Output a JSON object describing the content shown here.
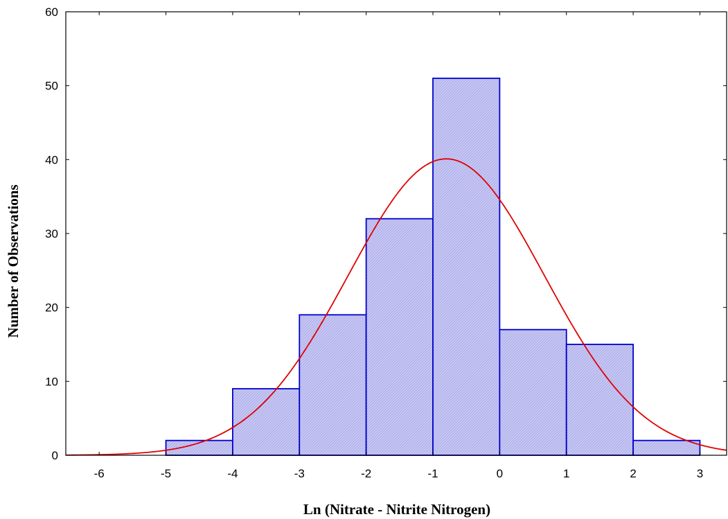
{
  "chart_data": {
    "type": "bar",
    "subtype": "histogram",
    "title": "",
    "xlabel": "Ln (Nitrate - Nitrite Nitrogen)",
    "ylabel": "Number of Observations",
    "xlim": [
      -6.5,
      3.4
    ],
    "ylim": [
      0,
      60
    ],
    "x_ticks": [
      -6,
      -5,
      -4,
      -3,
      -2,
      -1,
      0,
      1,
      2,
      3
    ],
    "y_ticks": [
      0,
      10,
      20,
      30,
      40,
      50,
      60
    ],
    "bins": [
      {
        "from": -5,
        "to": -4,
        "count": 2
      },
      {
        "from": -4,
        "to": -3,
        "count": 9
      },
      {
        "from": -3,
        "to": -2,
        "count": 19
      },
      {
        "from": -2,
        "to": -1,
        "count": 32
      },
      {
        "from": -1,
        "to": 0,
        "count": 51
      },
      {
        "from": 0,
        "to": 1,
        "count": 17
      },
      {
        "from": 1,
        "to": 2,
        "count": 15
      },
      {
        "from": 2,
        "to": 3,
        "count": 2
      }
    ],
    "fit_curve": {
      "type": "normal",
      "mean": -0.8,
      "sd": 1.47,
      "peak": 40.1
    },
    "grid": false,
    "legend": "none",
    "colors": {
      "bar_fill": "#c8c8f4",
      "bar_stroke": "#0000cc",
      "curve": "#e00000",
      "axis": "#000000"
    }
  }
}
